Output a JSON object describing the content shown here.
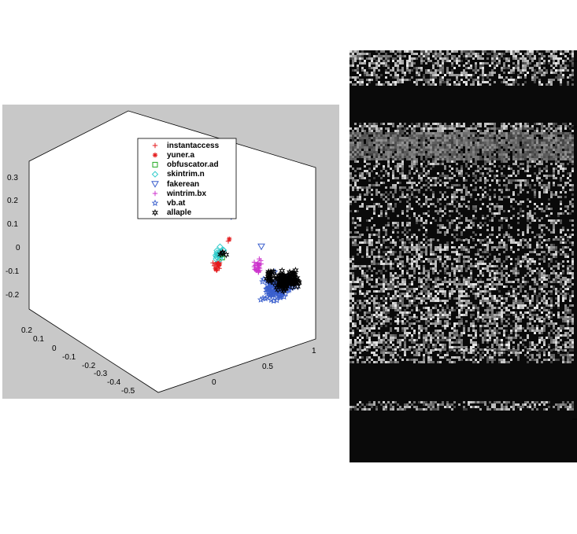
{
  "chart_data": [
    {
      "type": "scatter",
      "projection": "3d",
      "title": "",
      "xlabel": "",
      "ylabel": "",
      "zlabel": "",
      "background": "#c8c8c8",
      "legend_position": "top-right",
      "axes": {
        "z_ticks": [
          "0.3",
          "0.2",
          "0.1",
          "0",
          "-0.1",
          "-0.2"
        ],
        "y_ticks": [
          "0.2",
          "0.1",
          "0",
          "-0.1",
          "-0.2",
          "-0.3",
          "-0.4",
          "-0.5"
        ],
        "x_ticks": [
          "0",
          "0.5",
          "1"
        ]
      },
      "series": [
        {
          "name": "instantaccess",
          "marker": "+",
          "color": "#e41a1c",
          "clusters": [
            {
              "x": -0.12,
              "y": -0.08,
              "z": -0.13,
              "n": 8
            },
            {
              "x": 0.05,
              "y": -0.05,
              "z": 0.01,
              "n": 1
            }
          ]
        },
        {
          "name": "yuner.a",
          "marker": "*",
          "color": "#e41a1c",
          "clusters": [
            {
              "x": -0.11,
              "y": -0.09,
              "z": -0.12,
              "n": 6
            },
            {
              "x": 0.06,
              "y": -0.05,
              "z": 0.02,
              "n": 1
            }
          ]
        },
        {
          "name": "obfuscator.ad",
          "marker": "square",
          "color": "#22aa22",
          "clusters": [
            {
              "x": -0.13,
              "y": -0.1,
              "z": -0.1,
              "n": 3
            }
          ]
        },
        {
          "name": "skintrim.n",
          "marker": "diamond",
          "color": "#33cccc",
          "clusters": [
            {
              "x": -0.09,
              "y": -0.08,
              "z": -0.07,
              "n": 16
            }
          ]
        },
        {
          "name": "fakerean",
          "marker": "triangle-down",
          "color": "#3a5fcd",
          "clusters": [
            {
              "x": 0.0,
              "y": -0.05,
              "z": 0.33,
              "n": 26
            },
            {
              "x": 0.08,
              "y": -0.05,
              "z": 0.12,
              "n": 1
            },
            {
              "x": 0.3,
              "y": -0.1,
              "z": 0.0,
              "n": 1
            }
          ]
        },
        {
          "name": "wintrim.bx",
          "marker": "+",
          "color": "#cc33cc",
          "clusters": [
            {
              "x": -0.08,
              "y": -0.3,
              "z": -0.2,
              "n": 24
            }
          ]
        },
        {
          "name": "vb.at",
          "marker": "pentagram",
          "color": "#3a5fcd",
          "clusters": [
            {
              "x": 0.8,
              "y": 0.1,
              "z": -0.05,
              "n": 130
            },
            {
              "x": 0.35,
              "y": -0.15,
              "z": -0.12,
              "n": 1
            }
          ]
        },
        {
          "name": "allaple",
          "marker": "hexagram",
          "color": "#000000",
          "clusters": [
            {
              "x": 0.3,
              "y": -0.25,
              "z": -0.2,
              "n": 120
            },
            {
              "x": 0.55,
              "y": 0.0,
              "z": -0.07,
              "n": 14
            },
            {
              "x": -0.05,
              "y": -0.07,
              "z": -0.06,
              "n": 4
            }
          ]
        }
      ]
    },
    {
      "type": "heatmap",
      "colormap": "gray",
      "xlabel": "",
      "ylabel": ""
    }
  ]
}
